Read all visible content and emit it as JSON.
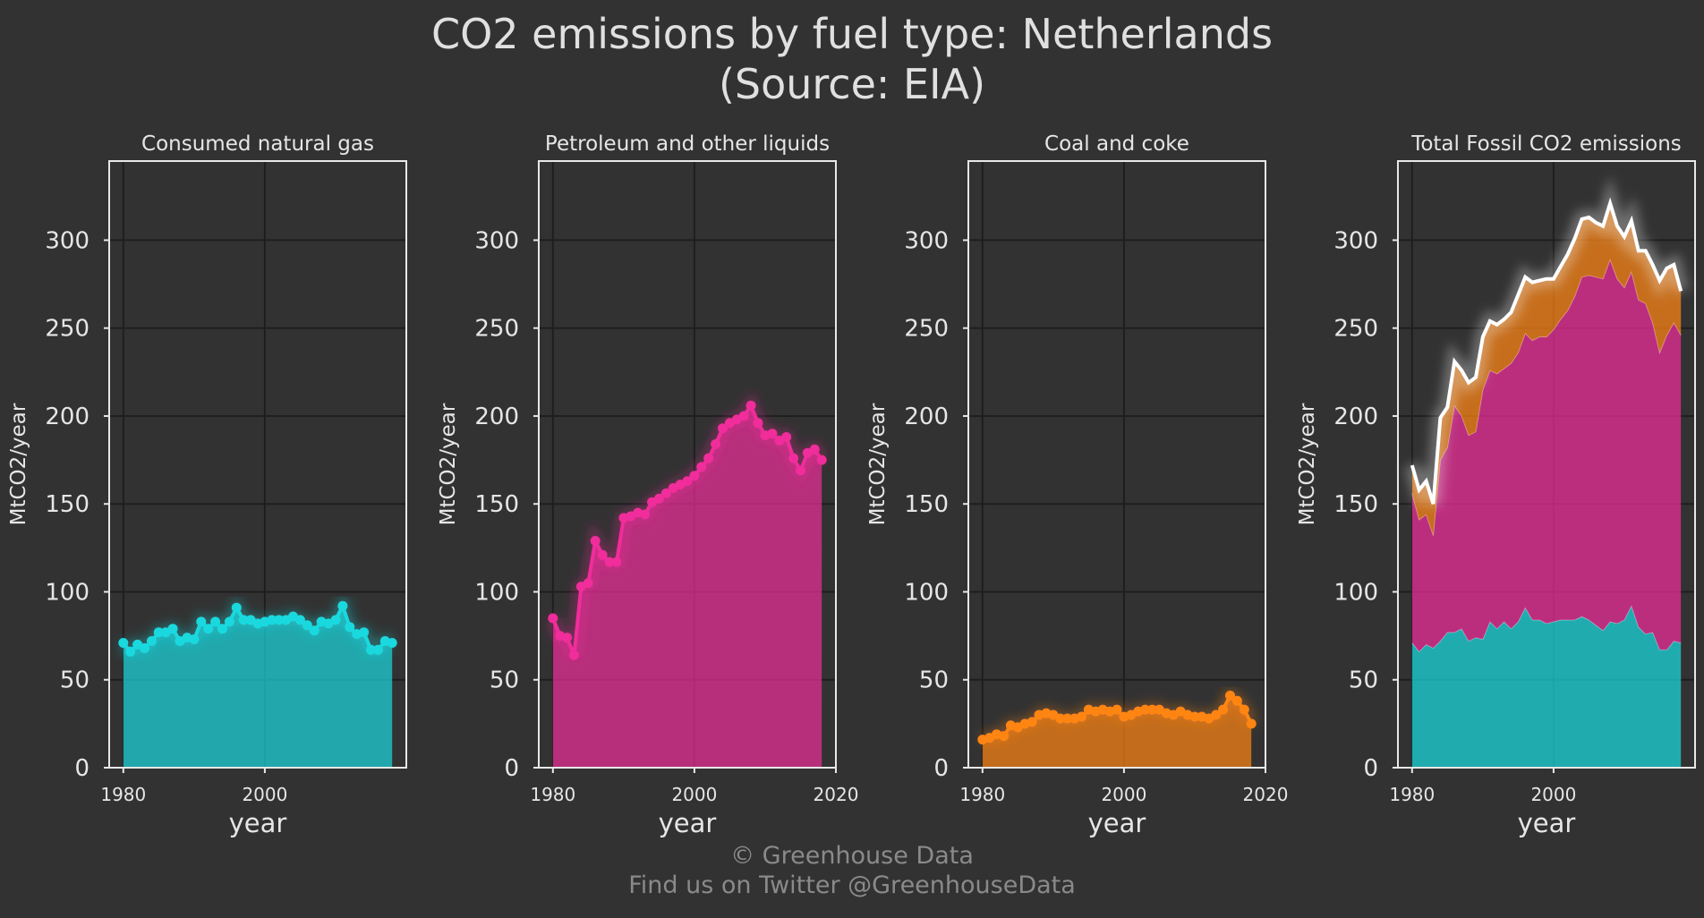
{
  "title_lines": [
    "CO2 emissions by fuel type: Netherlands",
    "(Source: EIA)"
  ],
  "footer_lines": [
    "© Greenhouse Data",
    "Find us on Twitter @GreenhouseData"
  ],
  "colors": {
    "background": "#323232",
    "gas": "#19d9df",
    "petroleum": "#f02d9a",
    "coal": "#ff8513",
    "total": "#ffffff",
    "grid": "#1e1e1e",
    "frame": "#e8e8e8"
  },
  "chart_data": [
    {
      "type": "area",
      "title": "Consumed natural gas",
      "xlabel": "year",
      "ylabel": "MtCO2/year",
      "xlim": [
        1978,
        2020
      ],
      "ylim": [
        0,
        345
      ],
      "xticks": [
        1980,
        2000
      ],
      "yticks": [
        0,
        50,
        100,
        150,
        200,
        250,
        300
      ],
      "grid": true,
      "x": [
        1980,
        1981,
        1982,
        1983,
        1984,
        1985,
        1986,
        1987,
        1988,
        1989,
        1990,
        1991,
        1992,
        1993,
        1994,
        1995,
        1996,
        1997,
        1998,
        1999,
        2000,
        2001,
        2002,
        2003,
        2004,
        2005,
        2006,
        2007,
        2008,
        2009,
        2010,
        2011,
        2012,
        2013,
        2014,
        2015,
        2016,
        2017,
        2018
      ],
      "series": [
        {
          "key": "gas",
          "values": [
            71,
            66,
            70,
            68,
            72,
            77,
            77,
            79,
            72,
            74,
            73,
            83,
            79,
            83,
            79,
            83,
            91,
            84,
            84,
            82,
            83,
            84,
            84,
            84,
            86,
            84,
            81,
            78,
            83,
            82,
            84,
            92,
            80,
            76,
            77,
            67,
            67,
            72,
            71
          ]
        }
      ]
    },
    {
      "type": "area",
      "title": "Petroleum and other liquids",
      "xlabel": "year",
      "ylabel": "MtCO2/year",
      "xlim": [
        1978,
        2020
      ],
      "ylim": [
        0,
        345
      ],
      "xticks": [
        1980,
        2000,
        2020
      ],
      "yticks": [
        0,
        50,
        100,
        150,
        200,
        250,
        300
      ],
      "grid": true,
      "x": [
        1980,
        1981,
        1982,
        1983,
        1984,
        1985,
        1986,
        1987,
        1988,
        1989,
        1990,
        1991,
        1992,
        1993,
        1994,
        1995,
        1996,
        1997,
        1998,
        1999,
        2000,
        2001,
        2002,
        2003,
        2004,
        2005,
        2006,
        2007,
        2008,
        2009,
        2010,
        2011,
        2012,
        2013,
        2014,
        2015,
        2016,
        2017,
        2018
      ],
      "series": [
        {
          "key": "petroleum",
          "values": [
            85,
            75,
            74,
            64,
            103,
            105,
            129,
            121,
            117,
            117,
            142,
            143,
            145,
            144,
            151,
            153,
            156,
            159,
            161,
            163,
            166,
            171,
            176,
            184,
            193,
            196,
            198,
            200,
            206,
            196,
            189,
            190,
            186,
            188,
            176,
            169,
            179,
            181,
            175
          ]
        }
      ]
    },
    {
      "type": "area",
      "title": "Coal and coke",
      "xlabel": "year",
      "ylabel": "MtCO2/year",
      "xlim": [
        1978,
        2020
      ],
      "ylim": [
        0,
        345
      ],
      "xticks": [
        1980,
        2000,
        2020
      ],
      "yticks": [
        0,
        50,
        100,
        150,
        200,
        250,
        300
      ],
      "grid": true,
      "x": [
        1980,
        1981,
        1982,
        1983,
        1984,
        1985,
        1986,
        1987,
        1988,
        1989,
        1990,
        1991,
        1992,
        1993,
        1994,
        1995,
        1996,
        1997,
        1998,
        1999,
        2000,
        2001,
        2002,
        2003,
        2004,
        2005,
        2006,
        2007,
        2008,
        2009,
        2010,
        2011,
        2012,
        2013,
        2014,
        2015,
        2016,
        2017,
        2018
      ],
      "series": [
        {
          "key": "coal",
          "values": [
            16,
            17,
            19,
            18,
            24,
            23,
            25,
            26,
            30,
            31,
            30,
            28,
            28,
            28,
            29,
            33,
            32,
            33,
            32,
            33,
            29,
            30,
            32,
            33,
            33,
            33,
            31,
            30,
            32,
            30,
            29,
            29,
            28,
            30,
            33,
            41,
            38,
            33,
            25
          ]
        }
      ]
    },
    {
      "type": "area",
      "title": "Total Fossil CO2 emissions",
      "xlabel": "year",
      "ylabel": "MtCO2/year",
      "xlim": [
        1978,
        2020
      ],
      "ylim": [
        0,
        345
      ],
      "xticks": [
        1980,
        2000
      ],
      "yticks": [
        0,
        50,
        100,
        150,
        200,
        250,
        300
      ],
      "grid": true,
      "stacked": true,
      "x": [
        1980,
        1981,
        1982,
        1983,
        1984,
        1985,
        1986,
        1987,
        1988,
        1989,
        1990,
        1991,
        1992,
        1993,
        1994,
        1995,
        1996,
        1997,
        1998,
        1999,
        2000,
        2001,
        2002,
        2003,
        2004,
        2005,
        2006,
        2007,
        2008,
        2009,
        2010,
        2011,
        2012,
        2013,
        2014,
        2015,
        2016,
        2017,
        2018
      ],
      "series": [
        {
          "key": "gas",
          "values": [
            71,
            66,
            70,
            68,
            72,
            77,
            77,
            79,
            72,
            74,
            73,
            83,
            79,
            83,
            79,
            83,
            91,
            84,
            84,
            82,
            83,
            84,
            84,
            84,
            86,
            84,
            81,
            78,
            83,
            82,
            84,
            92,
            80,
            76,
            77,
            67,
            67,
            72,
            71
          ]
        },
        {
          "key": "petroleum",
          "values": [
            85,
            75,
            74,
            64,
            103,
            105,
            129,
            121,
            117,
            117,
            142,
            143,
            145,
            144,
            151,
            153,
            156,
            159,
            161,
            163,
            166,
            171,
            176,
            184,
            193,
            196,
            198,
            200,
            206,
            196,
            189,
            190,
            186,
            188,
            176,
            169,
            179,
            181,
            175
          ]
        },
        {
          "key": "coal",
          "values": [
            16,
            17,
            19,
            18,
            24,
            23,
            25,
            26,
            30,
            31,
            30,
            28,
            28,
            28,
            29,
            33,
            32,
            33,
            32,
            33,
            29,
            30,
            32,
            33,
            33,
            33,
            31,
            30,
            32,
            30,
            29,
            29,
            28,
            30,
            33,
            41,
            38,
            33,
            25
          ]
        }
      ],
      "total": [
        172,
        158,
        163,
        150,
        199,
        205,
        231,
        226,
        219,
        222,
        245,
        254,
        252,
        255,
        259,
        269,
        279,
        276,
        277,
        278,
        278,
        285,
        292,
        301,
        312,
        313,
        310,
        308,
        321,
        308,
        302,
        311,
        294,
        294,
        286,
        277,
        284,
        286,
        271
      ]
    }
  ]
}
